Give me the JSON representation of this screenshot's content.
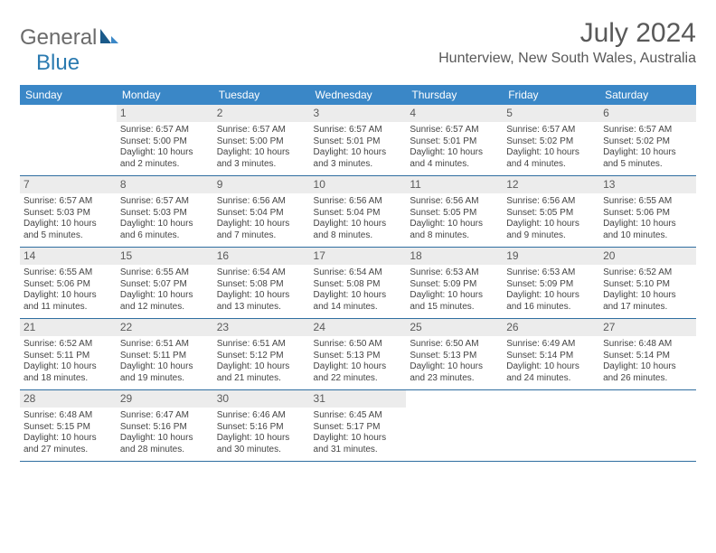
{
  "logo": {
    "text1": "General",
    "text2": "Blue"
  },
  "title": "July 2024",
  "location": "Hunterview, New South Wales, Australia",
  "colors": {
    "header_bg": "#3a87c7",
    "header_text": "#ffffff",
    "daynum_bg": "#ececec",
    "row_border": "#2f6ea0",
    "title_color": "#595959",
    "logo_gray": "#6b6b6b",
    "logo_blue": "#2a7ab0"
  },
  "day_headers": [
    "Sunday",
    "Monday",
    "Tuesday",
    "Wednesday",
    "Thursday",
    "Friday",
    "Saturday"
  ],
  "weeks": [
    [
      {
        "n": "",
        "lines": []
      },
      {
        "n": "1",
        "lines": [
          "Sunrise: 6:57 AM",
          "Sunset: 5:00 PM",
          "Daylight: 10 hours and 2 minutes."
        ]
      },
      {
        "n": "2",
        "lines": [
          "Sunrise: 6:57 AM",
          "Sunset: 5:00 PM",
          "Daylight: 10 hours and 3 minutes."
        ]
      },
      {
        "n": "3",
        "lines": [
          "Sunrise: 6:57 AM",
          "Sunset: 5:01 PM",
          "Daylight: 10 hours and 3 minutes."
        ]
      },
      {
        "n": "4",
        "lines": [
          "Sunrise: 6:57 AM",
          "Sunset: 5:01 PM",
          "Daylight: 10 hours and 4 minutes."
        ]
      },
      {
        "n": "5",
        "lines": [
          "Sunrise: 6:57 AM",
          "Sunset: 5:02 PM",
          "Daylight: 10 hours and 4 minutes."
        ]
      },
      {
        "n": "6",
        "lines": [
          "Sunrise: 6:57 AM",
          "Sunset: 5:02 PM",
          "Daylight: 10 hours and 5 minutes."
        ]
      }
    ],
    [
      {
        "n": "7",
        "lines": [
          "Sunrise: 6:57 AM",
          "Sunset: 5:03 PM",
          "Daylight: 10 hours and 5 minutes."
        ]
      },
      {
        "n": "8",
        "lines": [
          "Sunrise: 6:57 AM",
          "Sunset: 5:03 PM",
          "Daylight: 10 hours and 6 minutes."
        ]
      },
      {
        "n": "9",
        "lines": [
          "Sunrise: 6:56 AM",
          "Sunset: 5:04 PM",
          "Daylight: 10 hours and 7 minutes."
        ]
      },
      {
        "n": "10",
        "lines": [
          "Sunrise: 6:56 AM",
          "Sunset: 5:04 PM",
          "Daylight: 10 hours and 8 minutes."
        ]
      },
      {
        "n": "11",
        "lines": [
          "Sunrise: 6:56 AM",
          "Sunset: 5:05 PM",
          "Daylight: 10 hours and 8 minutes."
        ]
      },
      {
        "n": "12",
        "lines": [
          "Sunrise: 6:56 AM",
          "Sunset: 5:05 PM",
          "Daylight: 10 hours and 9 minutes."
        ]
      },
      {
        "n": "13",
        "lines": [
          "Sunrise: 6:55 AM",
          "Sunset: 5:06 PM",
          "Daylight: 10 hours and 10 minutes."
        ]
      }
    ],
    [
      {
        "n": "14",
        "lines": [
          "Sunrise: 6:55 AM",
          "Sunset: 5:06 PM",
          "Daylight: 10 hours and 11 minutes."
        ]
      },
      {
        "n": "15",
        "lines": [
          "Sunrise: 6:55 AM",
          "Sunset: 5:07 PM",
          "Daylight: 10 hours and 12 minutes."
        ]
      },
      {
        "n": "16",
        "lines": [
          "Sunrise: 6:54 AM",
          "Sunset: 5:08 PM",
          "Daylight: 10 hours and 13 minutes."
        ]
      },
      {
        "n": "17",
        "lines": [
          "Sunrise: 6:54 AM",
          "Sunset: 5:08 PM",
          "Daylight: 10 hours and 14 minutes."
        ]
      },
      {
        "n": "18",
        "lines": [
          "Sunrise: 6:53 AM",
          "Sunset: 5:09 PM",
          "Daylight: 10 hours and 15 minutes."
        ]
      },
      {
        "n": "19",
        "lines": [
          "Sunrise: 6:53 AM",
          "Sunset: 5:09 PM",
          "Daylight: 10 hours and 16 minutes."
        ]
      },
      {
        "n": "20",
        "lines": [
          "Sunrise: 6:52 AM",
          "Sunset: 5:10 PM",
          "Daylight: 10 hours and 17 minutes."
        ]
      }
    ],
    [
      {
        "n": "21",
        "lines": [
          "Sunrise: 6:52 AM",
          "Sunset: 5:11 PM",
          "Daylight: 10 hours and 18 minutes."
        ]
      },
      {
        "n": "22",
        "lines": [
          "Sunrise: 6:51 AM",
          "Sunset: 5:11 PM",
          "Daylight: 10 hours and 19 minutes."
        ]
      },
      {
        "n": "23",
        "lines": [
          "Sunrise: 6:51 AM",
          "Sunset: 5:12 PM",
          "Daylight: 10 hours and 21 minutes."
        ]
      },
      {
        "n": "24",
        "lines": [
          "Sunrise: 6:50 AM",
          "Sunset: 5:13 PM",
          "Daylight: 10 hours and 22 minutes."
        ]
      },
      {
        "n": "25",
        "lines": [
          "Sunrise: 6:50 AM",
          "Sunset: 5:13 PM",
          "Daylight: 10 hours and 23 minutes."
        ]
      },
      {
        "n": "26",
        "lines": [
          "Sunrise: 6:49 AM",
          "Sunset: 5:14 PM",
          "Daylight: 10 hours and 24 minutes."
        ]
      },
      {
        "n": "27",
        "lines": [
          "Sunrise: 6:48 AM",
          "Sunset: 5:14 PM",
          "Daylight: 10 hours and 26 minutes."
        ]
      }
    ],
    [
      {
        "n": "28",
        "lines": [
          "Sunrise: 6:48 AM",
          "Sunset: 5:15 PM",
          "Daylight: 10 hours and 27 minutes."
        ]
      },
      {
        "n": "29",
        "lines": [
          "Sunrise: 6:47 AM",
          "Sunset: 5:16 PM",
          "Daylight: 10 hours and 28 minutes."
        ]
      },
      {
        "n": "30",
        "lines": [
          "Sunrise: 6:46 AM",
          "Sunset: 5:16 PM",
          "Daylight: 10 hours and 30 minutes."
        ]
      },
      {
        "n": "31",
        "lines": [
          "Sunrise: 6:45 AM",
          "Sunset: 5:17 PM",
          "Daylight: 10 hours and 31 minutes."
        ]
      },
      {
        "n": "",
        "lines": []
      },
      {
        "n": "",
        "lines": []
      },
      {
        "n": "",
        "lines": []
      }
    ]
  ]
}
